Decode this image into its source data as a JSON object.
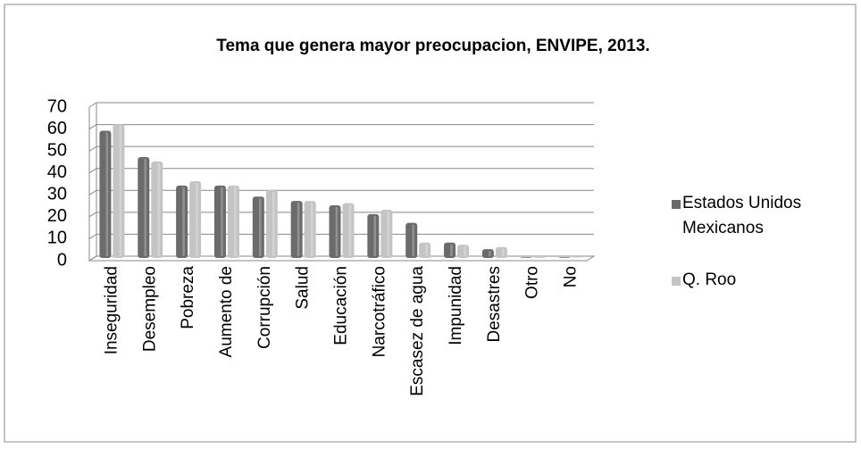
{
  "chart_data": {
    "type": "bar3d",
    "title": "Tema que genera mayor preocupacion, ENVIPE, 2013.",
    "categories": [
      "Inseguridad",
      "Desempleo",
      "Pobreza",
      "Aumento de",
      "Corrupción",
      "Salud",
      "Educación",
      "Narcotráfico",
      "Escasez de agua",
      "Impunidad",
      "Desastres",
      "Otro",
      "No"
    ],
    "series": [
      {
        "name": "Estados Unidos Mexicanos",
        "color": "#6b6b6b",
        "values": [
          58,
          46,
          33,
          33,
          28,
          26,
          24,
          20,
          16,
          7,
          4,
          0.3,
          0.3
        ]
      },
      {
        "name": "Q. Roo",
        "color": "#c4c4c4",
        "values": [
          61,
          44,
          35,
          33,
          31,
          26,
          25,
          22,
          7,
          6,
          5,
          0.3,
          0.2
        ]
      }
    ],
    "ylim": [
      0,
      70
    ],
    "yticks": [
      0,
      10,
      20,
      30,
      40,
      50,
      60,
      70
    ],
    "grid": true,
    "legend": "right"
  }
}
